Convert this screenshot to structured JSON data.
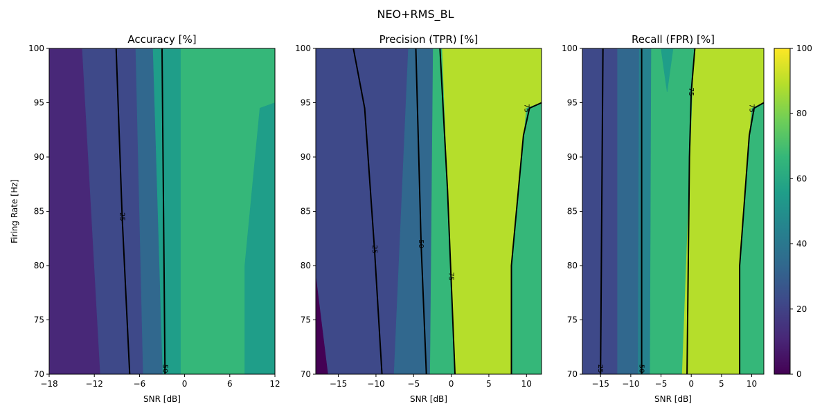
{
  "figure": {
    "suptitle": "NEO+RMS_BL"
  },
  "colors": {
    "viridis": [
      "#440154",
      "#482878",
      "#3e4989",
      "#31688e",
      "#26828e",
      "#1f9e89",
      "#35b779",
      "#6ece58",
      "#b5de2b",
      "#fde725"
    ],
    "contour_line": "#000000"
  },
  "colorbar": {
    "min": 0,
    "max": 100,
    "ticks": [
      "0",
      "20",
      "40",
      "60",
      "80",
      "100"
    ]
  },
  "chart_data": [
    {
      "type": "filled-contour",
      "title": "Accuracy [%]",
      "xlabel": "SNR [dB]",
      "ylabel": "Firing Rate [Hz]",
      "xlim": [
        -18,
        12
      ],
      "ylim": [
        70,
        100
      ],
      "xticks": [
        "-18",
        "-12",
        "-6",
        "0",
        "6",
        "12"
      ],
      "xtick_values": [
        -18,
        -12,
        -6,
        0,
        6,
        12
      ],
      "yticks": [
        "70",
        "75",
        "80",
        "85",
        "90",
        "95",
        "100"
      ],
      "regions": [
        {
          "level": 10,
          "polygon": [
            [
              -18,
              70
            ],
            [
              -18,
              100
            ],
            [
              -13.6,
              100
            ],
            [
              -11.2,
              70
            ]
          ]
        },
        {
          "level": 25,
          "polygon": [
            [
              -13.6,
              100
            ],
            [
              -11.2,
              70
            ],
            [
              -5.5,
              70
            ],
            [
              -6.5,
              100
            ]
          ]
        },
        {
          "level": 35,
          "polygon": [
            [
              -6.5,
              100
            ],
            [
              -5.5,
              70
            ],
            [
              -2.9,
              70
            ],
            [
              -4.2,
              100
            ]
          ]
        },
        {
          "level": 50,
          "polygon": [
            [
              -4.2,
              100
            ],
            [
              -2.9,
              70
            ],
            [
              -0.5,
              70
            ],
            [
              -0.5,
              100
            ]
          ]
        },
        {
          "level": 65,
          "polygon": [
            [
              -0.5,
              70
            ],
            [
              -0.5,
              100
            ],
            [
              12,
              100
            ],
            [
              12,
              95
            ],
            [
              10,
              94.5
            ],
            [
              8,
              80
            ],
            [
              8,
              70
            ]
          ]
        },
        {
          "level": 55,
          "polygon": [
            [
              8,
              70
            ],
            [
              8,
              80
            ],
            [
              10,
              94.5
            ],
            [
              12,
              95
            ],
            [
              12,
              70
            ]
          ]
        }
      ],
      "contours": [
        {
          "label": "25",
          "label_at": [
            -8.3,
            84.5
          ],
          "points": [
            [
              -9.1,
              100
            ],
            [
              -8.3,
              84.5
            ],
            [
              -7.3,
              70
            ]
          ]
        },
        {
          "label": "50",
          "label_at": [
            -2.6,
            70.5
          ],
          "points": [
            [
              -3,
              100
            ],
            [
              -2.6,
              70
            ]
          ]
        }
      ]
    },
    {
      "type": "filled-contour",
      "title": "Precision (TPR) [%]",
      "xlabel": "SNR [dB]",
      "ylabel": "",
      "xlim": [
        -18,
        12
      ],
      "ylim": [
        70,
        100
      ],
      "xticks": [
        "-15",
        "-10",
        "-5",
        "0",
        "5",
        "10"
      ],
      "xtick_values": [
        -15,
        -10,
        -5,
        0,
        5,
        10
      ],
      "yticks": [
        "70",
        "75",
        "80",
        "85",
        "90",
        "95",
        "100"
      ],
      "regions": [
        {
          "level": 20,
          "polygon": [
            [
              -18,
              70
            ],
            [
              -18,
              100
            ],
            [
              -5.7,
              100
            ],
            [
              -7.6,
              70
            ]
          ]
        },
        {
          "level": 8,
          "polygon": [
            [
              -18,
              70
            ],
            [
              -18,
              79
            ],
            [
              -16.4,
              70
            ]
          ]
        },
        {
          "level": 38,
          "polygon": [
            [
              -5.7,
              100
            ],
            [
              -7.6,
              70
            ],
            [
              -2.8,
              70
            ],
            [
              -2.4,
              100
            ]
          ]
        },
        {
          "level": 65,
          "polygon": [
            [
              -2.4,
              100
            ],
            [
              -2.8,
              70
            ],
            [
              0.5,
              70
            ],
            [
              -1.2,
              100
            ]
          ]
        },
        {
          "level": 80,
          "polygon": [
            [
              -1.2,
              100
            ],
            [
              0.5,
              70
            ],
            [
              12,
              70
            ],
            [
              12,
              100
            ]
          ]
        },
        {
          "level": 65,
          "polygon": [
            [
              8,
              70
            ],
            [
              8,
              80
            ],
            [
              10,
              94.5
            ],
            [
              12,
              95
            ],
            [
              12,
              70
            ]
          ]
        }
      ],
      "contours": [
        {
          "label": "25",
          "label_at": [
            -10.2,
            81.5
          ],
          "points": [
            [
              -13,
              100
            ],
            [
              -11.5,
              94.5
            ],
            [
              -10.2,
              81.5
            ],
            [
              -9.2,
              70
            ]
          ]
        },
        {
          "label": "50",
          "label_at": [
            -4,
            82
          ],
          "points": [
            [
              -4.7,
              100
            ],
            [
              -4,
              82
            ],
            [
              -3.3,
              70
            ]
          ]
        },
        {
          "label": "75",
          "label_at": [
            0,
            79
          ],
          "points": [
            [
              -1.5,
              100
            ],
            [
              -0.5,
              87
            ],
            [
              0.5,
              70
            ]
          ]
        },
        {
          "label": "75",
          "label_at": [
            10,
            94.5
          ],
          "points": [
            [
              8,
              70
            ],
            [
              8,
              80
            ],
            [
              9.6,
              92
            ],
            [
              10.4,
              94.5
            ],
            [
              12,
              95
            ]
          ]
        }
      ]
    },
    {
      "type": "filled-contour",
      "title": "Recall (FPR) [%]",
      "xlabel": "SNR [dB]",
      "ylabel": "",
      "xlim": [
        -18,
        12
      ],
      "ylim": [
        70,
        100
      ],
      "xticks": [
        "-15",
        "-10",
        "-5",
        "0",
        "5",
        "10"
      ],
      "xtick_values": [
        -15,
        -10,
        -5,
        0,
        5,
        10
      ],
      "yticks": [
        "70",
        "75",
        "80",
        "85",
        "90",
        "95",
        "100"
      ],
      "regions": [
        {
          "level": 22,
          "polygon": [
            [
              -18,
              70
            ],
            [
              -18,
              100
            ],
            [
              -12.2,
              100
            ],
            [
              -12.2,
              70
            ]
          ]
        },
        {
          "level": 35,
          "polygon": [
            [
              -12.2,
              70
            ],
            [
              -12.2,
              100
            ],
            [
              -8.6,
              100
            ],
            [
              -8.8,
              70
            ]
          ]
        },
        {
          "level": 48,
          "polygon": [
            [
              -8.6,
              100
            ],
            [
              -8.8,
              70
            ],
            [
              -6.8,
              70
            ],
            [
              -6.6,
              100
            ]
          ]
        },
        {
          "level": 65,
          "polygon": [
            [
              -6.6,
              100
            ],
            [
              -6.8,
              70
            ],
            [
              -1.5,
              70
            ],
            [
              0.5,
              100
            ]
          ]
        },
        {
          "level": 80,
          "polygon": [
            [
              0.5,
              100
            ],
            [
              -1.5,
              70
            ],
            [
              12,
              70
            ],
            [
              12,
              100
            ]
          ]
        },
        {
          "level": 65,
          "polygon": [
            [
              8,
              70
            ],
            [
              8,
              80
            ],
            [
              10,
              94.5
            ],
            [
              12,
              95
            ],
            [
              12,
              70
            ]
          ]
        },
        {
          "level": 52,
          "polygon": [
            [
              -5,
              100
            ],
            [
              -4,
              96
            ],
            [
              -3,
              100
            ]
          ]
        }
      ],
      "contours": [
        {
          "label": "25",
          "label_at": [
            -15,
            70.5
          ],
          "points": [
            [
              -14.6,
              100
            ],
            [
              -15,
              70
            ]
          ]
        },
        {
          "label": "50",
          "label_at": [
            -8.2,
            70.5
          ],
          "points": [
            [
              -8.2,
              100
            ],
            [
              -8.2,
              70
            ]
          ]
        },
        {
          "label": "75",
          "label_at": [
            0,
            96
          ],
          "points": [
            [
              0.6,
              100
            ],
            [
              0,
              96
            ],
            [
              -0.3,
              90
            ],
            [
              -0.7,
              70
            ]
          ]
        },
        {
          "label": "75",
          "label_at": [
            10,
            94.5
          ],
          "points": [
            [
              8,
              70
            ],
            [
              8,
              80
            ],
            [
              9.6,
              92
            ],
            [
              10.4,
              94.5
            ],
            [
              12,
              95
            ]
          ]
        }
      ]
    }
  ]
}
